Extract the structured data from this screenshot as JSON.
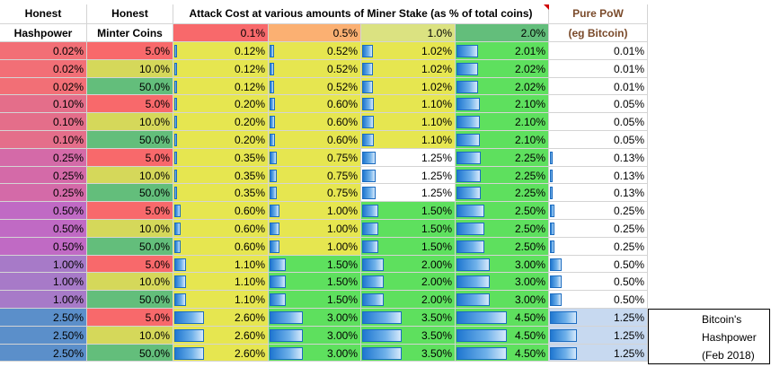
{
  "header": {
    "col1_line1": "Honest",
    "col1_line2": "Hashpower",
    "col2_line1": "Honest",
    "col2_line2": "Minter Coins",
    "attack_title": "Attack Cost at various amounts of Miner Stake (as % of total coins)",
    "stakes": [
      "0.1%",
      "0.5%",
      "1.0%",
      "2.0%"
    ],
    "pow_line1": "Pure PoW",
    "pow_line2": "(eg Bitcoin)"
  },
  "colors": {
    "header_text": "#000000",
    "pow_header_text": "#7a4a2a",
    "stake_header_bg": [
      "#f8696b",
      "#fbb072",
      "#dbe281",
      "#63be7b"
    ],
    "attack_yellow": "#e6e650",
    "attack_green": "#5ee05e",
    "attack_white": "#ffffff",
    "bitcoin_row_bg": "#c7d9f0",
    "data_bar_blue": "#2a7fd4"
  },
  "rows": [
    {
      "hash": "0.02%",
      "hashColor": "#f26f76",
      "mint": "5.0%",
      "mintColor": "#f8696b",
      "costs": [
        "0.12%",
        "0.52%",
        "1.02%",
        "2.01%"
      ],
      "costColors": [
        "y",
        "y",
        "y",
        "g"
      ],
      "pow": "0.01%",
      "powBar": 0.0
    },
    {
      "hash": "0.02%",
      "hashColor": "#f26f76",
      "mint": "10.0%",
      "mintColor": "#d5d85a",
      "costs": [
        "0.12%",
        "0.52%",
        "1.02%",
        "2.02%"
      ],
      "costColors": [
        "y",
        "y",
        "y",
        "g"
      ],
      "pow": "0.01%",
      "powBar": 0.0
    },
    {
      "hash": "0.02%",
      "hashColor": "#f26f76",
      "mint": "50.0%",
      "mintColor": "#63be7b",
      "costs": [
        "0.12%",
        "0.52%",
        "1.02%",
        "2.02%"
      ],
      "costColors": [
        "y",
        "y",
        "y",
        "g"
      ],
      "pow": "0.01%",
      "powBar": 0.0
    },
    {
      "hash": "0.10%",
      "hashColor": "#e46e8a",
      "mint": "5.0%",
      "mintColor": "#f8696b",
      "costs": [
        "0.20%",
        "0.60%",
        "1.10%",
        "2.10%"
      ],
      "costColors": [
        "y",
        "y",
        "y",
        "g"
      ],
      "pow": "0.05%",
      "powBar": 0.0
    },
    {
      "hash": "0.10%",
      "hashColor": "#e46e8a",
      "mint": "10.0%",
      "mintColor": "#d5d85a",
      "costs": [
        "0.20%",
        "0.60%",
        "1.10%",
        "2.10%"
      ],
      "costColors": [
        "y",
        "y",
        "y",
        "g"
      ],
      "pow": "0.05%",
      "powBar": 0.0
    },
    {
      "hash": "0.10%",
      "hashColor": "#e46e8a",
      "mint": "50.0%",
      "mintColor": "#63be7b",
      "costs": [
        "0.20%",
        "0.60%",
        "1.10%",
        "2.10%"
      ],
      "costColors": [
        "y",
        "y",
        "y",
        "g"
      ],
      "pow": "0.05%",
      "powBar": 0.0
    },
    {
      "hash": "0.25%",
      "hashColor": "#d46aa8",
      "mint": "5.0%",
      "mintColor": "#f8696b",
      "costs": [
        "0.35%",
        "0.75%",
        "1.25%",
        "2.25%"
      ],
      "costColors": [
        "y",
        "y",
        "w",
        "g"
      ],
      "pow": "0.13%",
      "powBar": 0.02
    },
    {
      "hash": "0.25%",
      "hashColor": "#d46aa8",
      "mint": "10.0%",
      "mintColor": "#d5d85a",
      "costs": [
        "0.35%",
        "0.75%",
        "1.25%",
        "2.25%"
      ],
      "costColors": [
        "y",
        "y",
        "w",
        "g"
      ],
      "pow": "0.13%",
      "powBar": 0.02
    },
    {
      "hash": "0.25%",
      "hashColor": "#d46aa8",
      "mint": "50.0%",
      "mintColor": "#63be7b",
      "costs": [
        "0.35%",
        "0.75%",
        "1.25%",
        "2.25%"
      ],
      "costColors": [
        "y",
        "y",
        "w",
        "g"
      ],
      "pow": "0.13%",
      "powBar": 0.02
    },
    {
      "hash": "0.50%",
      "hashColor": "#c06ac4",
      "mint": "5.0%",
      "mintColor": "#f8696b",
      "costs": [
        "0.60%",
        "1.00%",
        "1.50%",
        "2.50%"
      ],
      "costColors": [
        "y",
        "y",
        "g",
        "g"
      ],
      "pow": "0.25%",
      "powBar": 0.05
    },
    {
      "hash": "0.50%",
      "hashColor": "#c06ac4",
      "mint": "10.0%",
      "mintColor": "#d5d85a",
      "costs": [
        "0.60%",
        "1.00%",
        "1.50%",
        "2.50%"
      ],
      "costColors": [
        "y",
        "y",
        "g",
        "g"
      ],
      "pow": "0.25%",
      "powBar": 0.05
    },
    {
      "hash": "0.50%",
      "hashColor": "#c06ac4",
      "mint": "50.0%",
      "mintColor": "#63be7b",
      "costs": [
        "0.60%",
        "1.00%",
        "1.50%",
        "2.50%"
      ],
      "costColors": [
        "y",
        "y",
        "g",
        "g"
      ],
      "pow": "0.25%",
      "powBar": 0.05
    },
    {
      "hash": "1.00%",
      "hashColor": "#a77ac8",
      "mint": "5.0%",
      "mintColor": "#f8696b",
      "costs": [
        "1.10%",
        "1.50%",
        "2.00%",
        "3.00%"
      ],
      "costColors": [
        "y",
        "g",
        "g",
        "g"
      ],
      "pow": "0.50%",
      "powBar": 0.12
    },
    {
      "hash": "1.00%",
      "hashColor": "#a77ac8",
      "mint": "10.0%",
      "mintColor": "#d5d85a",
      "costs": [
        "1.10%",
        "1.50%",
        "2.00%",
        "3.00%"
      ],
      "costColors": [
        "y",
        "g",
        "g",
        "g"
      ],
      "pow": "0.50%",
      "powBar": 0.12
    },
    {
      "hash": "1.00%",
      "hashColor": "#a77ac8",
      "mint": "50.0%",
      "mintColor": "#63be7b",
      "costs": [
        "1.10%",
        "1.50%",
        "2.00%",
        "3.00%"
      ],
      "costColors": [
        "y",
        "g",
        "g",
        "g"
      ],
      "pow": "0.50%",
      "powBar": 0.12
    },
    {
      "hash": "2.50%",
      "hashColor": "#5b8fca",
      "mint": "5.0%",
      "mintColor": "#f8696b",
      "costs": [
        "2.60%",
        "3.00%",
        "3.50%",
        "4.50%"
      ],
      "costColors": [
        "y",
        "g",
        "g",
        "g"
      ],
      "pow": "1.25%",
      "powBar": 0.28,
      "bitcoin": true
    },
    {
      "hash": "2.50%",
      "hashColor": "#5b8fca",
      "mint": "10.0%",
      "mintColor": "#d5d85a",
      "costs": [
        "2.60%",
        "3.00%",
        "3.50%",
        "4.50%"
      ],
      "costColors": [
        "y",
        "g",
        "g",
        "g"
      ],
      "pow": "1.25%",
      "powBar": 0.28,
      "bitcoin": true
    },
    {
      "hash": "2.50%",
      "hashColor": "#5b8fca",
      "mint": "50.0%",
      "mintColor": "#63be7b",
      "costs": [
        "2.60%",
        "3.00%",
        "3.50%",
        "4.50%"
      ],
      "costColors": [
        "y",
        "g",
        "g",
        "g"
      ],
      "pow": "1.25%",
      "powBar": 0.28,
      "bitcoin": true
    }
  ],
  "note": [
    "Bitcoin's",
    "Hashpower",
    "(Feb 2018)"
  ]
}
